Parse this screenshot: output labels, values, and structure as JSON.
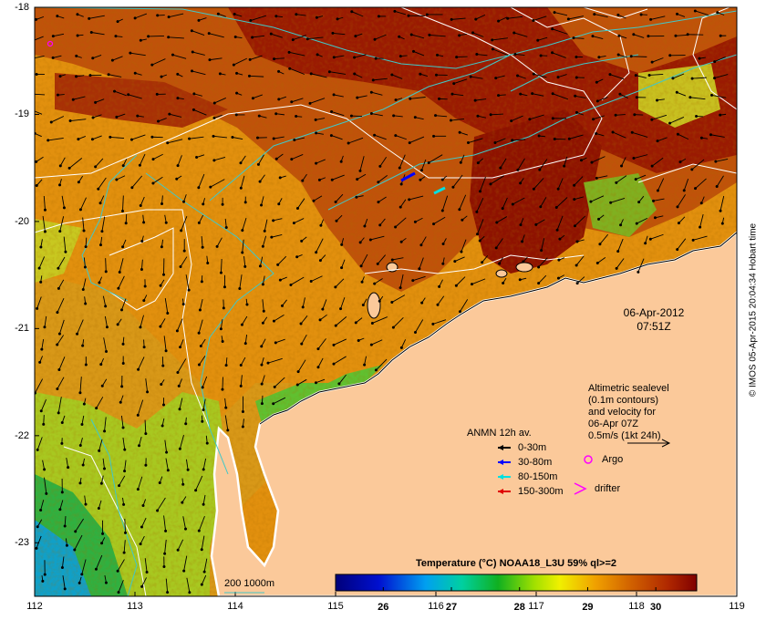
{
  "map": {
    "lon_ticks": [
      "112",
      "113",
      "114",
      "115",
      "116",
      "117",
      "118",
      "119"
    ],
    "lat_ticks": [
      "-18",
      "-19",
      "-20",
      "-21",
      "-22",
      "-23"
    ],
    "lon_range": [
      112,
      119
    ],
    "lat_range": [
      -18,
      -23.5
    ]
  },
  "date_label": {
    "date": "06-Apr-2012",
    "time": "07:51Z"
  },
  "altimetry_note": {
    "lines": [
      "Altimetric sealevel",
      "(0.1m contours)",
      "and velocity for",
      "06-Apr 07Z",
      "0.5m/s (1kt 24h)"
    ]
  },
  "anmn": {
    "title": "ANMN 12h av.",
    "items": [
      {
        "label": "0-30m",
        "color": "#000000"
      },
      {
        "label": "30-80m",
        "color": "#0000ff"
      },
      {
        "label": "80-150m",
        "color": "#00e0e0"
      },
      {
        "label": "150-300m",
        "color": "#e00000"
      }
    ]
  },
  "markers": {
    "argo": "Argo",
    "drifter": "drifter",
    "argo_color": "#ff00ff"
  },
  "isobath_label": "200  1000m",
  "colorbar": {
    "title": "Temperature (°C) NOAA18_L3U 59% ql>=2",
    "ticks": [
      "26",
      "27",
      "28",
      "29",
      "30"
    ],
    "range": [
      25.3,
      30.6
    ]
  },
  "credit": "© IMOS 05-Apr-2015 20:04:34 Hobart time",
  "colors": {
    "land": "#fbc99a",
    "warm": "#a01800",
    "mid": "#e08a10",
    "cool": "#30c040",
    "coast_ring": "#ffffff"
  }
}
